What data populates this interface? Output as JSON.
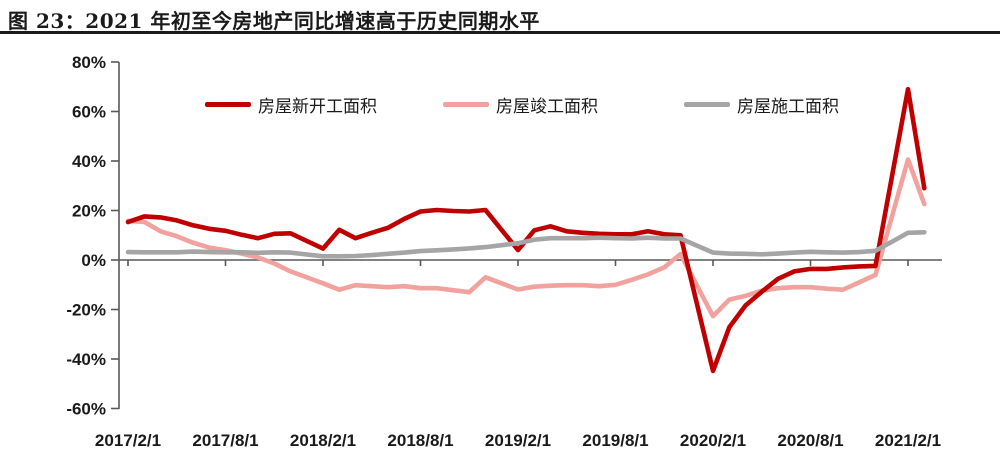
{
  "figure": {
    "title": "图 23：2021 年初至今房地产同比增速高于历史同期水平"
  },
  "chart_data": {
    "type": "line",
    "title": "图 23：2021 年初至今房地产同比增速高于历史同期水平",
    "xlabel": "",
    "ylabel": "",
    "ylim": [
      -60,
      80
    ],
    "y_step": 20,
    "grid": false,
    "legend_position": "top",
    "axis_color": "#595959",
    "y_ticks": [
      {
        "value": 80,
        "label": "80%"
      },
      {
        "value": 60,
        "label": "60%"
      },
      {
        "value": 40,
        "label": "40%"
      },
      {
        "value": 20,
        "label": "20%"
      },
      {
        "value": 0,
        "label": "0%"
      },
      {
        "value": -20,
        "label": "-20%"
      },
      {
        "value": -40,
        "label": "-40%"
      },
      {
        "value": -60,
        "label": "-60%"
      }
    ],
    "x_ticks": [
      {
        "date": "2017/2",
        "label": "2017/2/1"
      },
      {
        "date": "2017/8",
        "label": "2017/8/1"
      },
      {
        "date": "2018/2",
        "label": "2018/2/1"
      },
      {
        "date": "2018/8",
        "label": "2018/8/1"
      },
      {
        "date": "2019/2",
        "label": "2019/2/1"
      },
      {
        "date": "2019/8",
        "label": "2019/8/1"
      },
      {
        "date": "2020/2",
        "label": "2020/2/1"
      },
      {
        "date": "2020/8",
        "label": "2020/8/1"
      },
      {
        "date": "2021/2",
        "label": "2021/2/1"
      }
    ],
    "z_order": [
      1,
      0,
      2
    ],
    "series": [
      {
        "id": "new-starts",
        "name": "房屋新开工面积",
        "color": "#C00000",
        "points": [
          [
            "2017/2",
            15.3
          ],
          [
            "2017/3",
            17.6
          ],
          [
            "2017/4",
            17.2
          ],
          [
            "2017/5",
            16
          ],
          [
            "2017/6",
            14
          ],
          [
            "2017/7",
            12.6
          ],
          [
            "2017/8",
            11.8
          ],
          [
            "2017/9",
            10.2
          ],
          [
            "2017/10",
            8.8
          ],
          [
            "2017/11",
            10.6
          ],
          [
            "2017/12",
            10.8
          ],
          [
            "2018/2",
            4.6
          ],
          [
            "2018/3",
            12.2
          ],
          [
            "2018/4",
            8.8
          ],
          [
            "2018/5",
            11
          ],
          [
            "2018/6",
            13
          ],
          [
            "2018/7",
            16.6
          ],
          [
            "2018/8",
            19.6
          ],
          [
            "2018/9",
            20.2
          ],
          [
            "2018/10",
            19.8
          ],
          [
            "2018/11",
            19.6
          ],
          [
            "2018/12",
            20.2
          ],
          [
            "2019/2",
            4
          ],
          [
            "2019/3",
            12
          ],
          [
            "2019/4",
            13.6
          ],
          [
            "2019/5",
            11.6
          ],
          [
            "2019/6",
            11
          ],
          [
            "2019/7",
            10.6
          ],
          [
            "2019/8",
            10.4
          ],
          [
            "2019/9",
            10.4
          ],
          [
            "2019/10",
            11.6
          ],
          [
            "2019/11",
            10.4
          ],
          [
            "2019/12",
            10
          ],
          [
            "2020/2",
            -44.8
          ],
          [
            "2020/3",
            -27.2
          ],
          [
            "2020/4",
            -18.4
          ],
          [
            "2020/5",
            -12.8
          ],
          [
            "2020/6",
            -7.6
          ],
          [
            "2020/7",
            -4.6
          ],
          [
            "2020/8",
            -3.6
          ],
          [
            "2020/9",
            -3.6
          ],
          [
            "2020/10",
            -3
          ],
          [
            "2020/11",
            -2.6
          ],
          [
            "2020/12",
            -2.4
          ],
          [
            "2021/2",
            69
          ],
          [
            "2021/3",
            29
          ]
        ]
      },
      {
        "id": "completions",
        "name": "房屋竣工面积",
        "color": "#F2A29E",
        "points": [
          [
            "2017/2",
            15.8
          ],
          [
            "2017/3",
            15.4
          ],
          [
            "2017/4",
            11.6
          ],
          [
            "2017/5",
            9.6
          ],
          [
            "2017/6",
            7
          ],
          [
            "2017/7",
            5
          ],
          [
            "2017/8",
            4
          ],
          [
            "2017/9",
            2.6
          ],
          [
            "2017/10",
            1
          ],
          [
            "2017/11",
            -1.4
          ],
          [
            "2017/12",
            -4.6
          ],
          [
            "2018/2",
            -9.4
          ],
          [
            "2018/3",
            -12
          ],
          [
            "2018/4",
            -10.2
          ],
          [
            "2018/5",
            -10.6
          ],
          [
            "2018/6",
            -11
          ],
          [
            "2018/7",
            -10.6
          ],
          [
            "2018/8",
            -11.4
          ],
          [
            "2018/9",
            -11.4
          ],
          [
            "2018/10",
            -12.2
          ],
          [
            "2018/11",
            -13
          ],
          [
            "2018/12",
            -7
          ],
          [
            "2019/2",
            -11.9
          ],
          [
            "2019/3",
            -10.8
          ],
          [
            "2019/4",
            -10.4
          ],
          [
            "2019/5",
            -10.2
          ],
          [
            "2019/6",
            -10.2
          ],
          [
            "2019/7",
            -10.6
          ],
          [
            "2019/8",
            -10
          ],
          [
            "2019/9",
            -8
          ],
          [
            "2019/10",
            -5.8
          ],
          [
            "2019/11",
            -3
          ],
          [
            "2019/12",
            2.4
          ],
          [
            "2020/2",
            -22.7
          ],
          [
            "2020/3",
            -16
          ],
          [
            "2020/4",
            -14.5
          ],
          [
            "2020/5",
            -12.4
          ],
          [
            "2020/6",
            -11.4
          ],
          [
            "2020/7",
            -11
          ],
          [
            "2020/8",
            -11
          ],
          [
            "2020/9",
            -11.6
          ],
          [
            "2020/10",
            -12
          ],
          [
            "2020/11",
            -9
          ],
          [
            "2020/12",
            -6
          ],
          [
            "2021/2",
            40.6
          ],
          [
            "2021/3",
            22.6
          ]
        ]
      },
      {
        "id": "under-construction",
        "name": "房屋施工面积",
        "color": "#A5A5A5",
        "points": [
          [
            "2017/2",
            3.2
          ],
          [
            "2017/3",
            3.1
          ],
          [
            "2017/4",
            3.1
          ],
          [
            "2017/5",
            3.1
          ],
          [
            "2017/6",
            3.4
          ],
          [
            "2017/7",
            3.2
          ],
          [
            "2017/8",
            3.1
          ],
          [
            "2017/9",
            3.1
          ],
          [
            "2017/10",
            2.9
          ],
          [
            "2017/11",
            3.1
          ],
          [
            "2017/12",
            3
          ],
          [
            "2018/2",
            1.5
          ],
          [
            "2018/3",
            1.5
          ],
          [
            "2018/4",
            1.6
          ],
          [
            "2018/5",
            2
          ],
          [
            "2018/6",
            2.5
          ],
          [
            "2018/7",
            3
          ],
          [
            "2018/8",
            3.6
          ],
          [
            "2018/9",
            3.9
          ],
          [
            "2018/10",
            4.3
          ],
          [
            "2018/11",
            4.7
          ],
          [
            "2018/12",
            5.2
          ],
          [
            "2019/2",
            6.8
          ],
          [
            "2019/3",
            8.2
          ],
          [
            "2019/4",
            8.8
          ],
          [
            "2019/5",
            8.8
          ],
          [
            "2019/6",
            8.8
          ],
          [
            "2019/7",
            9
          ],
          [
            "2019/8",
            8.8
          ],
          [
            "2019/9",
            8.7
          ],
          [
            "2019/10",
            9
          ],
          [
            "2019/11",
            8.7
          ],
          [
            "2019/12",
            8.7
          ],
          [
            "2020/2",
            3
          ],
          [
            "2020/3",
            2.6
          ],
          [
            "2020/4",
            2.5
          ],
          [
            "2020/5",
            2.3
          ],
          [
            "2020/6",
            2.6
          ],
          [
            "2020/7",
            3
          ],
          [
            "2020/8",
            3.3
          ],
          [
            "2020/9",
            3.1
          ],
          [
            "2020/10",
            3
          ],
          [
            "2020/11",
            3.2
          ],
          [
            "2020/12",
            3.7
          ],
          [
            "2021/2",
            11
          ],
          [
            "2021/3",
            11.2
          ]
        ]
      }
    ]
  }
}
